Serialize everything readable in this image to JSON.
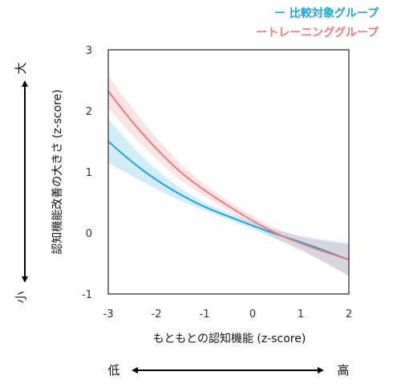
{
  "chart_data": {
    "type": "line",
    "title": "",
    "xlabel": "もともとの認知機能 (z-score)",
    "ylabel": "認知機能改善の大きさ (z-score)",
    "xlim": [
      -3,
      2
    ],
    "ylim": [
      -1,
      3
    ],
    "xticks": [
      "-3",
      "-2",
      "-1",
      "0",
      "1",
      "2"
    ],
    "yticks": [
      "-1",
      "0",
      "1",
      "2",
      "3"
    ],
    "grid": false,
    "legend_position": "top-right",
    "x": [
      -3,
      -2.5,
      -2,
      -1.5,
      -1,
      -0.5,
      0,
      0.5,
      1,
      1.5,
      2
    ],
    "series": [
      {
        "name": "比較対象グループ",
        "marker": "ー",
        "color": "#1ba6de",
        "values": [
          1.5,
          1.16,
          0.87,
          0.63,
          0.43,
          0.27,
          0.12,
          -0.02,
          -0.15,
          -0.29,
          -0.44
        ],
        "ci_lower": [
          1.15,
          0.93,
          0.72,
          0.53,
          0.37,
          0.22,
          0.06,
          -0.1,
          -0.27,
          -0.48,
          -0.71
        ],
        "ci_upper": [
          1.87,
          1.42,
          1.04,
          0.74,
          0.5,
          0.33,
          0.18,
          0.05,
          -0.05,
          -0.11,
          -0.17
        ]
      },
      {
        "name": "トレーニンググループ",
        "marker": "ー",
        "color": "#f07a7a",
        "values": [
          2.32,
          1.82,
          1.38,
          1.0,
          0.7,
          0.44,
          0.2,
          -0.01,
          -0.17,
          -0.31,
          -0.44
        ],
        "ci_lower": [
          2.05,
          1.6,
          1.21,
          0.87,
          0.6,
          0.36,
          0.12,
          -0.1,
          -0.29,
          -0.49,
          -0.7
        ],
        "ci_upper": [
          2.57,
          2.04,
          1.56,
          1.14,
          0.8,
          0.52,
          0.28,
          0.07,
          -0.06,
          -0.14,
          -0.18
        ]
      }
    ]
  },
  "annotations": {
    "y_high": "大",
    "y_low": "小",
    "x_low": "低",
    "x_high": "高"
  }
}
